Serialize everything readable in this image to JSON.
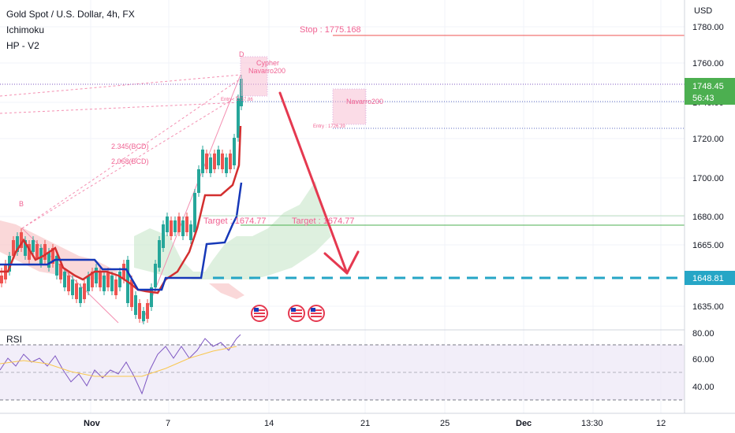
{
  "legend": {
    "symbol": "Gold Spot / U.S. Dollar, 4h, FX",
    "indicator1": "Ichimoku",
    "indicator2": "HP - V2"
  },
  "currency": "USD",
  "price_axis": [
    "1780.00",
    "1760.00",
    "1740.00",
    "1720.00",
    "1700.00",
    "1680.00",
    "1665.00",
    "1635.00"
  ],
  "rsi_axis": [
    "80.00",
    "60.00",
    "40.00"
  ],
  "time_axis": [
    "Nov",
    "7",
    "14",
    "21",
    "25",
    "Dec",
    "13:30",
    "12"
  ],
  "current_price": "1748.45",
  "countdown": "56:43",
  "target_level": "1648.81",
  "rsi_label": "RSI",
  "annotations": {
    "stop": "Stop : 1775.168",
    "target_left": "Target : 1674.77",
    "target_right": "Target : 1674.77",
    "pattern_name": "Cypher",
    "author1": "Navarro200",
    "author2": "Navarro200",
    "ratio1": "2.345(BCD)",
    "ratio2": "2.068(BCD)",
    "point_b": "B",
    "point_d": "D",
    "entry1": "Entry : 1737.86",
    "entry2": "Entry : 1726.39"
  },
  "colors": {
    "red_line": "#d32f2f",
    "blue_line": "#1638b8",
    "stop_line": "#ef5350",
    "target_line": "#4caf50",
    "dashed_cyan": "#26a6c6",
    "arrow": "#e53950",
    "pink": "#f06292"
  }
}
